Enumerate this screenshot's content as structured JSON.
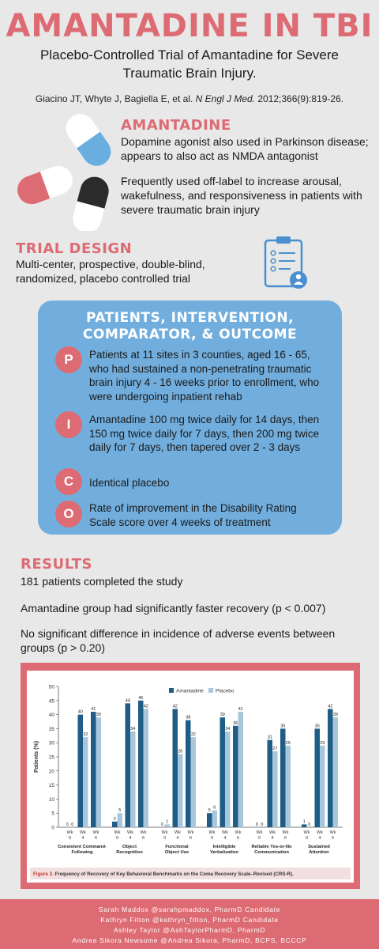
{
  "header": {
    "title": "AMANTADINE IN TBI",
    "subtitle": "Placebo-Controlled Trial of Amantadine for Severe Traumatic Brain Injury.",
    "citation_authors": "Giacino JT, Whyte J, Bagiella E, et al. ",
    "citation_journal": "N Engl J Med.",
    "citation_rest": " 2012;366(9):819-26."
  },
  "amantadine": {
    "heading": "AMANTADINE",
    "para1": "Dopamine agonist also used in Parkinson disease; appears to also act as NMDA antagonist",
    "para2": "Frequently used off-label to increase arousal, wakefulness, and responsiveness in patients with severe traumatic brain injury"
  },
  "trial_design": {
    "heading": "TRIAL DESIGN",
    "text": "Multi-center, prospective, double-blind, randomized, placebo controlled trial"
  },
  "pico": {
    "title_line1": "PATIENTS, INTERVENTION,",
    "title_line2": "COMPARATOR, & OUTCOME",
    "items": [
      {
        "letter": "P",
        "text": "Patients at 11 sites in 3 counties, aged 16 - 65, who had sustained a non-penetrating traumatic brain injury 4 - 16 weeks prior to enrollment, who were undergoing inpatient rehab"
      },
      {
        "letter": "I",
        "text": "Amantadine 100 mg twice daily for 14 days, then 150 mg twice daily for 7 days, then 200 mg twice daily for 7 days, then tapered over 2 - 3 days"
      },
      {
        "letter": "C",
        "text": "Identical placebo"
      },
      {
        "letter": "O",
        "text": "Rate of improvement in the Disability Rating Scale score over 4 weeks of treatment"
      }
    ]
  },
  "results": {
    "heading": "RESULTS",
    "line1": "181 patients completed the study",
    "line2": "Amantadine group had significantly faster recovery (p < 0.007)",
    "line3": "No significant difference in incidence of adverse events between groups (p > 0.20)"
  },
  "chart_data": {
    "type": "bar",
    "ylabel": "Patients (%)",
    "ylim": [
      0,
      50
    ],
    "yticks": [
      0,
      5,
      10,
      15,
      20,
      25,
      30,
      35,
      40,
      45,
      50
    ],
    "legend_placement": "top-center",
    "series": [
      {
        "name": "Amantadine",
        "color": "#1f5c86"
      },
      {
        "name": "Placebo",
        "color": "#a9c7dc"
      }
    ],
    "groups": [
      {
        "label1": "Consistent Command-",
        "label2": "Following",
        "weeks": [
          "Wk 0",
          "Wk 4",
          "Wk 6"
        ],
        "amantadine": [
          0,
          40,
          41
        ],
        "placebo": [
          0,
          32,
          39
        ]
      },
      {
        "label1": "Object",
        "label2": "Recognition",
        "weeks": [
          "Wk 0",
          "Wk 4",
          "Wk 6"
        ],
        "amantadine": [
          2,
          44,
          45
        ],
        "placebo": [
          5,
          34,
          42
        ]
      },
      {
        "label1": "Functional",
        "label2": "Object Use",
        "weeks": [
          "Wk 0",
          "Wk 4",
          "Wk 6"
        ],
        "amantadine": [
          0,
          42,
          38
        ],
        "placebo": [
          1,
          26,
          32
        ]
      },
      {
        "label1": "Intelligible",
        "label2": "Verbalization",
        "weeks": [
          "Wk 0",
          "Wk 4",
          "Wk 6"
        ],
        "amantadine": [
          5,
          39,
          36
        ],
        "placebo": [
          6,
          34,
          41
        ]
      },
      {
        "label1": "Reliable Yes-or-No",
        "label2": "Communication",
        "weeks": [
          "Wk 0",
          "Wk 4",
          "Wk 6"
        ],
        "amantadine": [
          0,
          31,
          35
        ],
        "placebo": [
          0,
          27,
          29
        ]
      },
      {
        "label1": "Sustained",
        "label2": "Attention",
        "weeks": [
          "Wk 0",
          "Wk 4",
          "Wk 6"
        ],
        "amantadine": [
          1,
          35,
          42
        ],
        "placebo": [
          0,
          29,
          39
        ]
      }
    ],
    "caption_label": "Figure 3.",
    "caption": " Frequency of Recovery of Key Behavioral Benchmarks on the Coma Recovery Scale–Revised (CRS-R)."
  },
  "footer": {
    "lines": [
      "Sarah Maddox @sarahpmaddox, PharmD Candidate",
      "Kathryn Fitton @kathryn_fitton, PharmD Candidate",
      "Ashley Taylor @AshTaylorPharmD, PharmD",
      "Andrea Sikora Newsome @Andrea Sikora, PharmD, BCPS, BCCCP"
    ]
  },
  "colors": {
    "accent_pink": "#dd6b73",
    "accent_blue": "#72aedd",
    "bar_dark": "#1f5c86",
    "bar_light": "#a9c7dc"
  },
  "icons": [
    "capsule-icon",
    "clipboard-checklist-icon"
  ]
}
